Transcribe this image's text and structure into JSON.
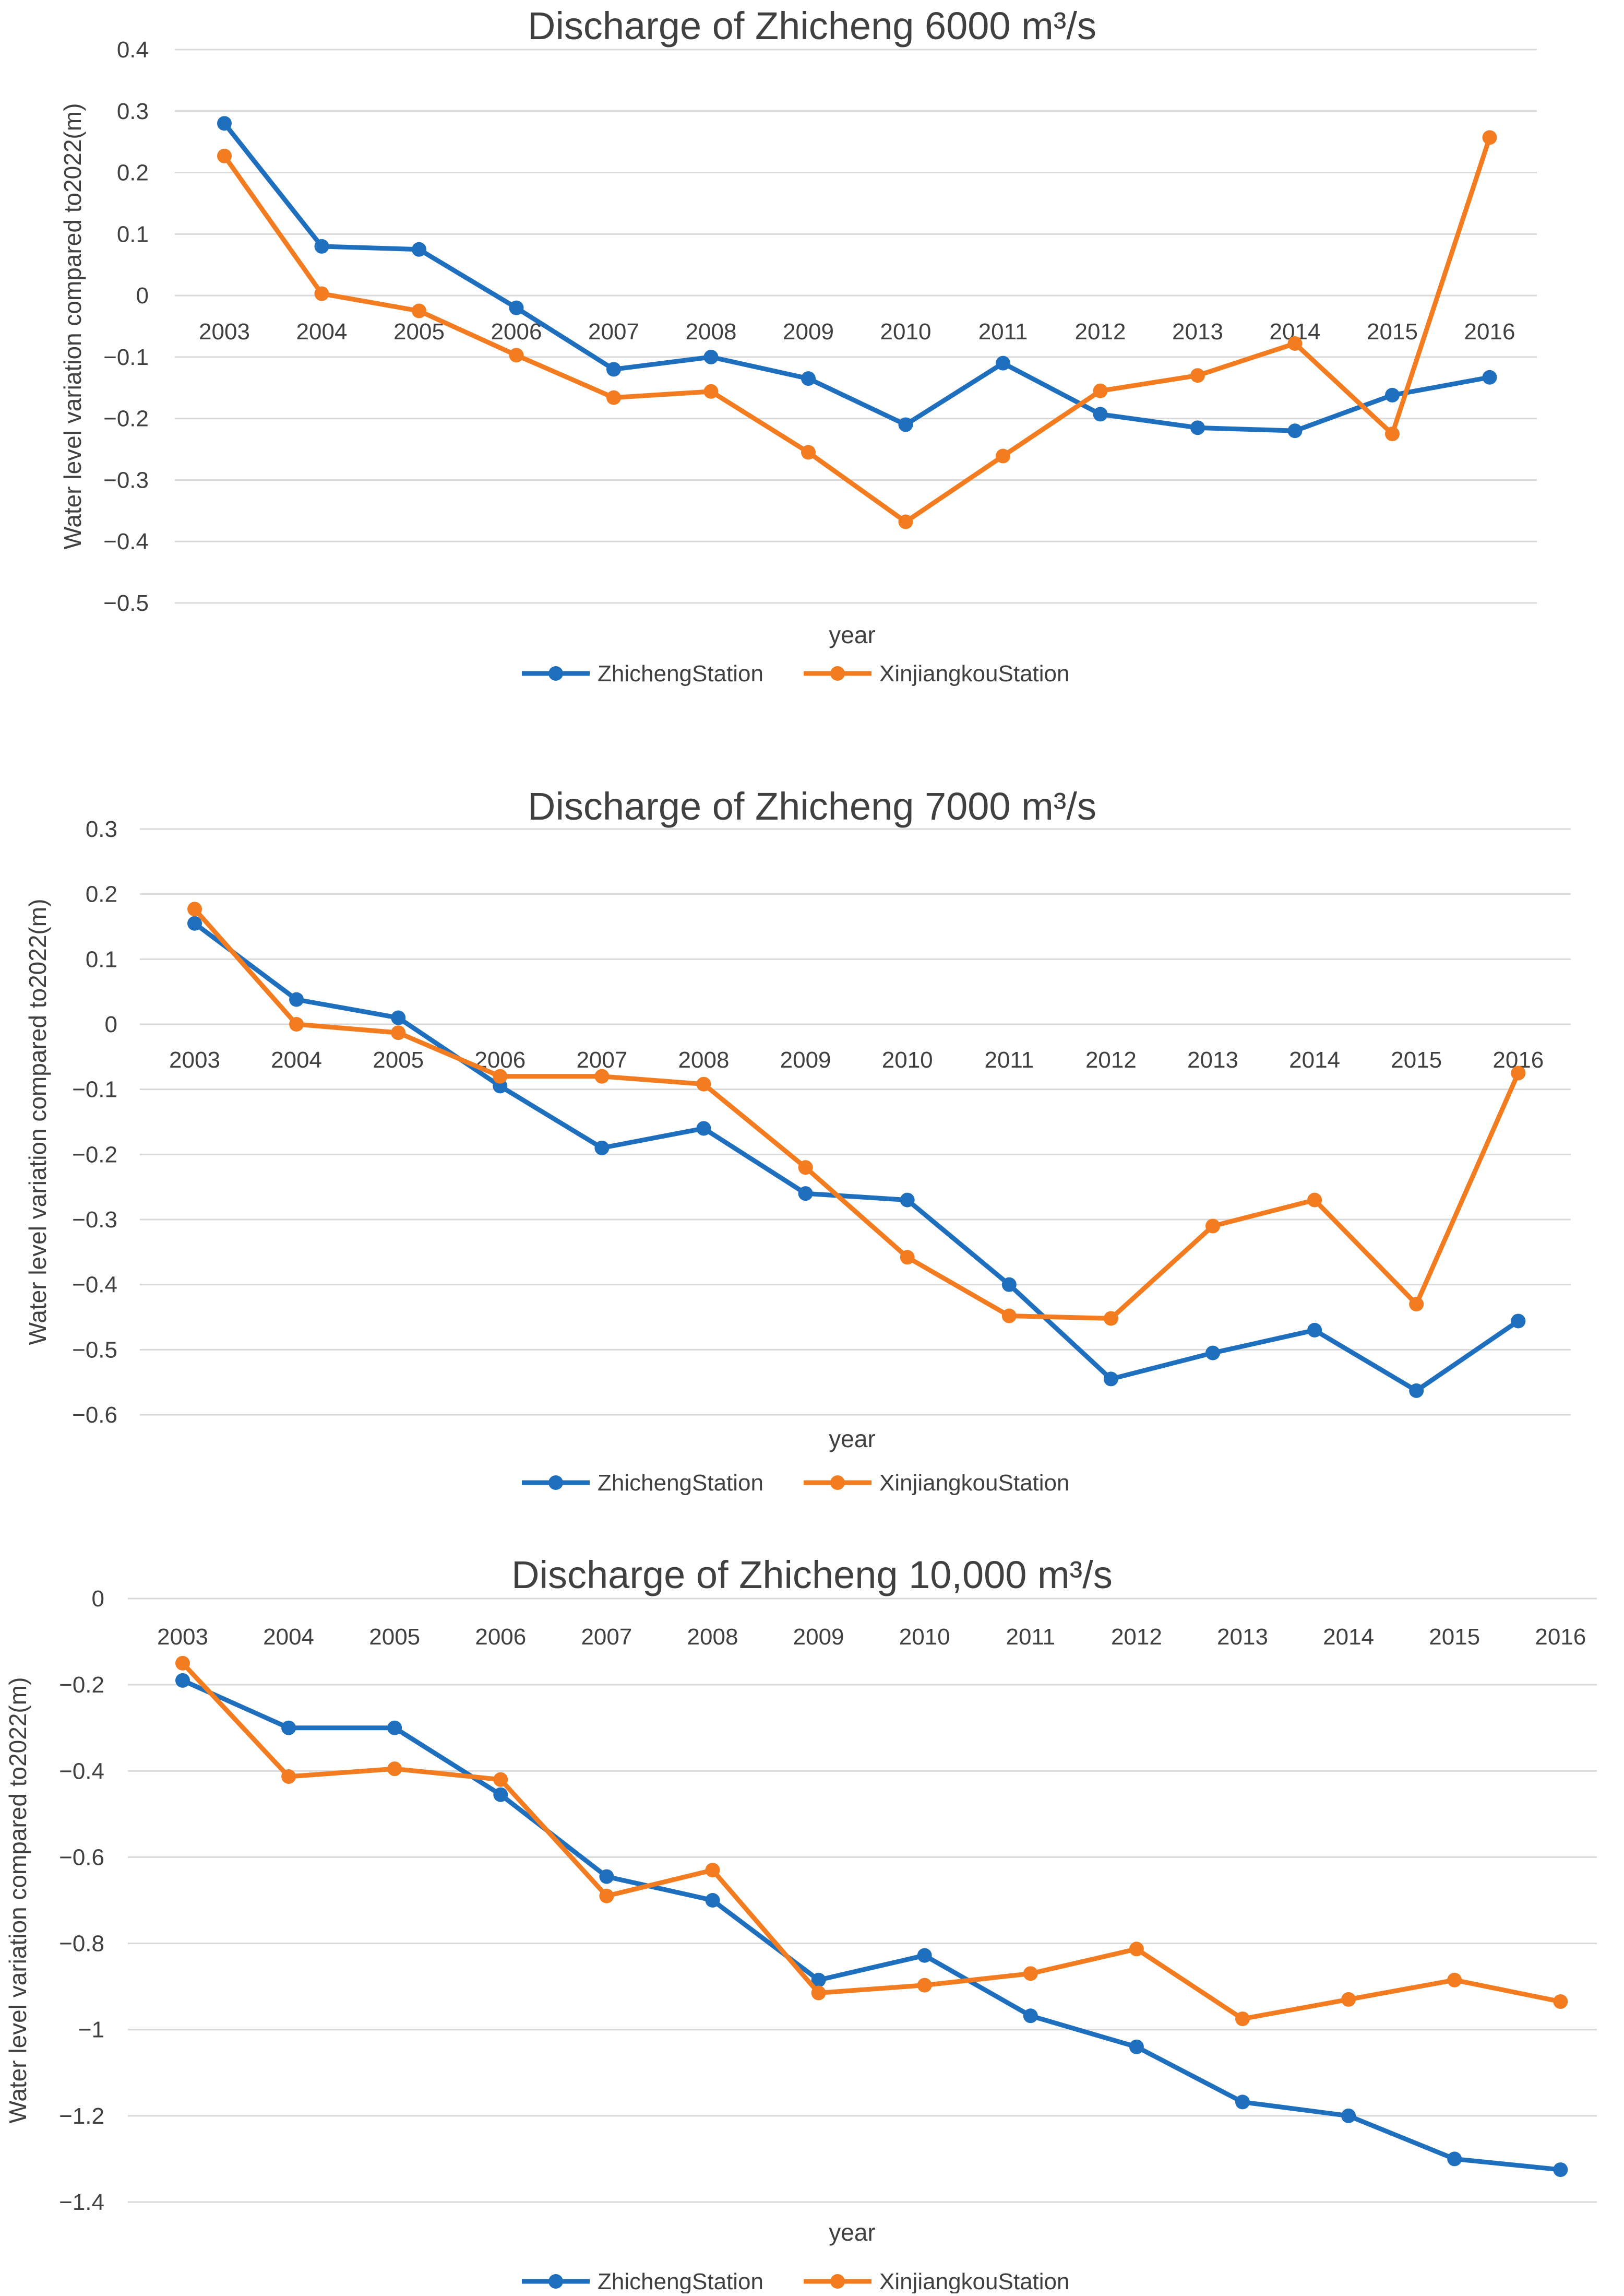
{
  "colors": {
    "zhicheng": "#1f6fbf",
    "xinjiangkou": "#f47c20",
    "grid": "#d9d9d9",
    "text": "#404040"
  },
  "chart_data": [
    {
      "type": "line",
      "title": "Discharge of Zhicheng 6000 m³/s",
      "xlabel": "year",
      "ylabel": "Water level variation compared to2022(m)",
      "categories": [
        "2003",
        "2004",
        "2005",
        "2006",
        "2007",
        "2008",
        "2009",
        "2010",
        "2011",
        "2012",
        "2013",
        "2014",
        "2015",
        "2016"
      ],
      "ylim": [
        -0.5,
        0.4
      ],
      "yticks": [
        0.4,
        0.3,
        0.2,
        0.1,
        0,
        -0.1,
        -0.2,
        -0.3,
        -0.4,
        -0.5
      ],
      "ytick_labels": [
        "0.4",
        "0.3",
        "0.2",
        "0.1",
        "0",
        "−0.1",
        "−0.2",
        "−0.3",
        "−0.4",
        "−0.5"
      ],
      "grid": true,
      "legend": "bottom",
      "series": [
        {
          "name": "ZhichengStation",
          "color": "#1f6fbf",
          "values": [
            0.28,
            0.08,
            0.075,
            -0.02,
            -0.12,
            -0.1,
            -0.135,
            -0.21,
            -0.11,
            -0.193,
            -0.215,
            -0.22,
            -0.162,
            -0.133
          ]
        },
        {
          "name": "XinjiangkouStation",
          "color": "#f47c20",
          "values": [
            0.227,
            0.003,
            -0.025,
            -0.097,
            -0.166,
            -0.156,
            -0.255,
            -0.368,
            -0.261,
            -0.155,
            -0.13,
            -0.078,
            -0.225,
            0.257
          ]
        }
      ]
    },
    {
      "type": "line",
      "title": "Discharge of Zhicheng 7000 m³/s",
      "xlabel": "year",
      "ylabel": "Water level variation compared to2022(m)",
      "categories": [
        "2003",
        "2004",
        "2005",
        "2006",
        "2007",
        "2008",
        "2009",
        "2010",
        "2011",
        "2012",
        "2013",
        "2014",
        "2015",
        "2016"
      ],
      "ylim": [
        -0.6,
        0.3
      ],
      "yticks": [
        0.3,
        0.2,
        0.1,
        0,
        -0.1,
        -0.2,
        -0.3,
        -0.4,
        -0.5,
        -0.6
      ],
      "ytick_labels": [
        "0.3",
        "0.2",
        "0.1",
        "0",
        "−0.1",
        "−0.2",
        "−0.3",
        "−0.4",
        "−0.5",
        "−0.6"
      ],
      "grid": true,
      "legend": "bottom",
      "series": [
        {
          "name": "ZhichengStation",
          "color": "#1f6fbf",
          "values": [
            0.155,
            0.038,
            0.01,
            -0.095,
            -0.19,
            -0.16,
            -0.26,
            -0.27,
            -0.4,
            -0.545,
            -0.505,
            -0.47,
            -0.563,
            -0.456
          ]
        },
        {
          "name": "XinjiangkouStation",
          "color": "#f47c20",
          "values": [
            0.177,
            0.0,
            -0.013,
            -0.08,
            -0.08,
            -0.092,
            -0.22,
            -0.358,
            -0.448,
            -0.452,
            -0.31,
            -0.27,
            -0.43,
            -0.075
          ]
        }
      ]
    },
    {
      "type": "line",
      "title": "Discharge of Zhicheng 10,000 m³/s",
      "xlabel": "year",
      "ylabel": "Water level variation compared to2022(m)",
      "categories": [
        "2003",
        "2004",
        "2005",
        "2006",
        "2007",
        "2008",
        "2009",
        "2010",
        "2011",
        "2012",
        "2013",
        "2014",
        "2015",
        "2016"
      ],
      "ylim": [
        -1.4,
        0
      ],
      "yticks": [
        0,
        -0.2,
        -0.4,
        -0.6,
        -0.8,
        -1,
        -1.2,
        -1.4
      ],
      "ytick_labels": [
        "0",
        "−0.2",
        "−0.4",
        "−0.6",
        "−0.8",
        "−1",
        "−1.2",
        "−1.4"
      ],
      "grid": true,
      "legend": "bottom",
      "series": [
        {
          "name": "ZhichengStation",
          "color": "#1f6fbf",
          "values": [
            -0.19,
            -0.3,
            -0.3,
            -0.455,
            -0.645,
            -0.7,
            -0.885,
            -0.828,
            -0.968,
            -1.04,
            -1.168,
            -1.2,
            -1.3,
            -1.325
          ]
        },
        {
          "name": "XinjiangkouStation",
          "color": "#f47c20",
          "values": [
            -0.15,
            -0.413,
            -0.395,
            -0.42,
            -0.69,
            -0.63,
            -0.915,
            -0.897,
            -0.87,
            -0.813,
            -0.975,
            -0.93,
            -0.885,
            -0.935
          ]
        }
      ]
    }
  ]
}
